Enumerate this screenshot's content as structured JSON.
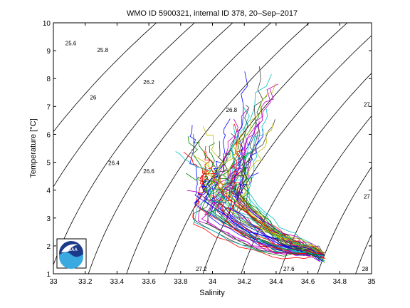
{
  "chart_data": {
    "type": "line",
    "title": "WMO ID 5900321, internal ID 378, 20–Sep–2017",
    "xlabel": "Salinity",
    "ylabel": "Temperature [°C]",
    "xlim": [
      33,
      35
    ],
    "ylim": [
      1,
      10
    ],
    "x_ticks": [
      "33",
      "33.2",
      "33.4",
      "33.6",
      "33.8",
      "34",
      "34.2",
      "34.4",
      "34.6",
      "34.8",
      "35"
    ],
    "y_ticks": [
      "1",
      "2",
      "3",
      "4",
      "5",
      "6",
      "7",
      "8",
      "9",
      "10"
    ],
    "grid": false,
    "density_contours": {
      "levels": [
        25.6,
        25.8,
        26,
        26.2,
        26.4,
        26.6,
        26.8,
        27,
        27.2,
        27.4,
        27.6,
        27.8,
        28
      ],
      "labels": [
        {
          "text": "25.6",
          "s": 33.11,
          "t": 9.2
        },
        {
          "text": "25.8",
          "s": 33.31,
          "t": 8.95
        },
        {
          "text": "26",
          "s": 33.25,
          "t": 7.25
        },
        {
          "text": "26.2",
          "s": 33.6,
          "t": 7.8
        },
        {
          "text": "26.4",
          "s": 33.38,
          "t": 4.9
        },
        {
          "text": "26.6",
          "s": 33.6,
          "t": 4.6
        },
        {
          "text": "26.8",
          "s": 34.12,
          "t": 6.8
        },
        {
          "text": "27",
          "s": 34.97,
          "t": 7.0
        },
        {
          "text": "27",
          "s": 34.97,
          "t": 3.7
        },
        {
          "text": "27.2",
          "s": 33.93,
          "t": 1.1
        },
        {
          "text": "27.6",
          "s": 34.48,
          "t": 1.1
        },
        {
          "text": "28",
          "s": 34.96,
          "t": 1.1
        }
      ]
    },
    "series_colors": [
      "#0000ff",
      "#008000",
      "#ff0000",
      "#00bfbf",
      "#bf00bf",
      "#bfbf00",
      "#404040"
    ],
    "profile_count": 60,
    "profile_shape": {
      "deep_point": {
        "s": 34.69,
        "t": 1.6
      },
      "mid_cluster": {
        "s": 34.05,
        "t": 3.4
      },
      "upper_branch_end": {
        "s": 34.42,
        "t": 8.4
      },
      "left_branch_end": {
        "s": 33.75,
        "t": 5.0
      }
    }
  },
  "logo": {
    "text": "NOAA"
  }
}
